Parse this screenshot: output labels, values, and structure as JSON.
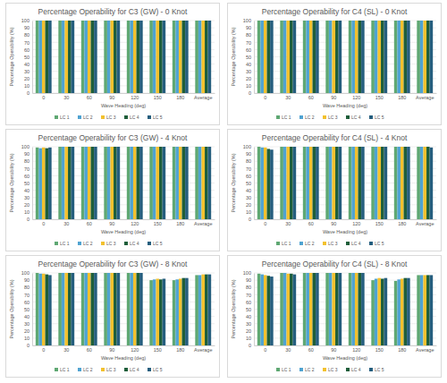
{
  "chart_data": [
    {
      "type": "bar",
      "title": "Percentage Operability for C3 (GW) - 0 Knot",
      "x_label": "Wave Heading (deg)",
      "y_label": "Percentage Operability (%)",
      "categories": [
        "0",
        "30",
        "60",
        "90",
        "120",
        "150",
        "180",
        "Average"
      ],
      "series": [
        {
          "name": "LC 1",
          "color": "#5fa873",
          "values": [
            100,
            100,
            100,
            100,
            100,
            100,
            100,
            100
          ]
        },
        {
          "name": "LC 2",
          "color": "#4fa3d1",
          "values": [
            100,
            100,
            100,
            100,
            100,
            100,
            100,
            100
          ]
        },
        {
          "name": "LC 3",
          "color": "#f2c12e",
          "values": [
            100,
            100,
            100,
            100,
            100,
            100,
            100,
            100
          ]
        },
        {
          "name": "LC 4",
          "color": "#1e5e3a",
          "values": [
            100,
            100,
            100,
            100,
            100,
            100,
            100,
            100
          ]
        },
        {
          "name": "LC 5",
          "color": "#255e7e",
          "values": [
            100,
            100,
            100,
            100,
            100,
            100,
            100,
            100
          ]
        }
      ],
      "ylim": [
        0,
        100
      ],
      "yticks": [
        0,
        10,
        20,
        30,
        40,
        50,
        60,
        70,
        80,
        90,
        100
      ],
      "grid": true,
      "legend": "bottom"
    },
    {
      "type": "bar",
      "title": "Percentage Operability for C4 (SL) - 0 Knot",
      "x_label": "Wave Heading (deg)",
      "y_label": "Percentage Operability (%)",
      "categories": [
        "0",
        "30",
        "60",
        "90",
        "120",
        "150",
        "180",
        "Average"
      ],
      "series": [
        {
          "name": "LC 1",
          "color": "#5fa873",
          "values": [
            100,
            100,
            100,
            100,
            100,
            100,
            100,
            100
          ]
        },
        {
          "name": "LC 2",
          "color": "#4fa3d1",
          "values": [
            100,
            100,
            100,
            100,
            100,
            100,
            100,
            100
          ]
        },
        {
          "name": "LC 3",
          "color": "#f2c12e",
          "values": [
            100,
            100,
            100,
            100,
            100,
            100,
            100,
            100
          ]
        },
        {
          "name": "LC 4",
          "color": "#1e5e3a",
          "values": [
            100,
            100,
            100,
            100,
            100,
            100,
            100,
            100
          ]
        },
        {
          "name": "LC 5",
          "color": "#255e7e",
          "values": [
            100,
            100,
            100,
            100,
            100,
            100,
            100,
            100
          ]
        }
      ],
      "ylim": [
        0,
        100
      ],
      "yticks": [
        0,
        10,
        20,
        30,
        40,
        50,
        60,
        70,
        80,
        90,
        100
      ],
      "grid": true,
      "legend": "bottom"
    },
    {
      "type": "bar",
      "title": "Percentage Operability for C3 (GW) - 4 Knot",
      "x_label": "Wave Heading (deg)",
      "y_label": "Percentage Operability (%)",
      "categories": [
        "0",
        "30",
        "60",
        "90",
        "120",
        "150",
        "180",
        "Average"
      ],
      "series": [
        {
          "name": "LC 1",
          "color": "#5fa873",
          "values": [
            99,
            100,
            100,
            100,
            100,
            100,
            100,
            100
          ]
        },
        {
          "name": "LC 2",
          "color": "#4fa3d1",
          "values": [
            98,
            100,
            100,
            100,
            100,
            100,
            100,
            100
          ]
        },
        {
          "name": "LC 3",
          "color": "#f2c12e",
          "values": [
            99,
            100,
            100,
            100,
            100,
            100,
            100,
            100
          ]
        },
        {
          "name": "LC 4",
          "color": "#1e5e3a",
          "values": [
            98,
            100,
            100,
            100,
            100,
            100,
            100,
            100
          ]
        },
        {
          "name": "LC 5",
          "color": "#255e7e",
          "values": [
            99,
            100,
            100,
            100,
            100,
            100,
            100,
            100
          ]
        }
      ],
      "ylim": [
        0,
        100
      ],
      "yticks": [
        0,
        10,
        20,
        30,
        40,
        50,
        60,
        70,
        80,
        90,
        100
      ],
      "grid": true,
      "legend": "bottom"
    },
    {
      "type": "bar",
      "title": "Percentage Operability for C4 (SL) - 4 Knot",
      "x_label": "Wave Heading (deg)",
      "y_label": "Percentage Operability (%)",
      "categories": [
        "0",
        "30",
        "60",
        "90",
        "120",
        "150",
        "180",
        "Average"
      ],
      "series": [
        {
          "name": "LC 1",
          "color": "#5fa873",
          "values": [
            100,
            100,
            100,
            100,
            100,
            100,
            100,
            100
          ]
        },
        {
          "name": "LC 2",
          "color": "#4fa3d1",
          "values": [
            99,
            100,
            100,
            100,
            100,
            100,
            100,
            100
          ]
        },
        {
          "name": "LC 3",
          "color": "#f2c12e",
          "values": [
            99,
            100,
            100,
            100,
            100,
            100,
            100,
            100
          ]
        },
        {
          "name": "LC 4",
          "color": "#1e5e3a",
          "values": [
            97,
            100,
            100,
            100,
            100,
            100,
            100,
            100
          ]
        },
        {
          "name": "LC 5",
          "color": "#255e7e",
          "values": [
            96,
            100,
            100,
            100,
            100,
            100,
            100,
            99
          ]
        }
      ],
      "ylim": [
        0,
        100
      ],
      "yticks": [
        0,
        10,
        20,
        30,
        40,
        50,
        60,
        70,
        80,
        90,
        100
      ],
      "grid": true,
      "legend": "bottom"
    },
    {
      "type": "bar",
      "title": "Percentage Operability for C3 (GW) - 8 Knot",
      "x_label": "Wave Heading (deg)",
      "y_label": "Percentage Operability (%)",
      "categories": [
        "0",
        "30",
        "60",
        "90",
        "120",
        "150",
        "180",
        "Average"
      ],
      "series": [
        {
          "name": "LC 1",
          "color": "#5fa873",
          "values": [
            100,
            100,
            100,
            100,
            100,
            90,
            90,
            97
          ]
        },
        {
          "name": "LC 2",
          "color": "#4fa3d1",
          "values": [
            99,
            100,
            100,
            100,
            100,
            91,
            91,
            97
          ]
        },
        {
          "name": "LC 3",
          "color": "#f2c12e",
          "values": [
            99,
            100,
            100,
            100,
            100,
            92,
            92,
            98
          ]
        },
        {
          "name": "LC 4",
          "color": "#1e5e3a",
          "values": [
            98,
            100,
            100,
            100,
            100,
            91,
            93,
            98
          ]
        },
        {
          "name": "LC 5",
          "color": "#255e7e",
          "values": [
            97,
            100,
            100,
            100,
            100,
            92,
            93,
            98
          ]
        }
      ],
      "ylim": [
        0,
        100
      ],
      "yticks": [
        0,
        10,
        20,
        30,
        40,
        50,
        60,
        70,
        80,
        90,
        100
      ],
      "grid": true,
      "legend": "bottom"
    },
    {
      "type": "bar",
      "title": "Percentage Operability for C4 (SL) - 8 Knot",
      "x_label": "Wave Heading (deg)",
      "y_label": "Percentage Operability (%)",
      "categories": [
        "0",
        "30",
        "60",
        "90",
        "120",
        "150",
        "180",
        "Average"
      ],
      "series": [
        {
          "name": "LC 1",
          "color": "#5fa873",
          "values": [
            99,
            100,
            100,
            100,
            100,
            90,
            89,
            97
          ]
        },
        {
          "name": "LC 2",
          "color": "#4fa3d1",
          "values": [
            98,
            100,
            100,
            100,
            100,
            92,
            91,
            97
          ]
        },
        {
          "name": "LC 3",
          "color": "#f2c12e",
          "values": [
            97,
            99,
            100,
            100,
            100,
            93,
            92,
            97
          ]
        },
        {
          "name": "LC 4",
          "color": "#1e5e3a",
          "values": [
            96,
            99,
            100,
            100,
            100,
            92,
            93,
            97
          ]
        },
        {
          "name": "LC 5",
          "color": "#255e7e",
          "values": [
            95,
            98,
            100,
            100,
            100,
            93,
            93,
            97
          ]
        }
      ],
      "ylim": [
        0,
        100
      ],
      "yticks": [
        0,
        10,
        20,
        30,
        40,
        50,
        60,
        70,
        80,
        90,
        100
      ],
      "grid": true,
      "legend": "bottom"
    }
  ]
}
